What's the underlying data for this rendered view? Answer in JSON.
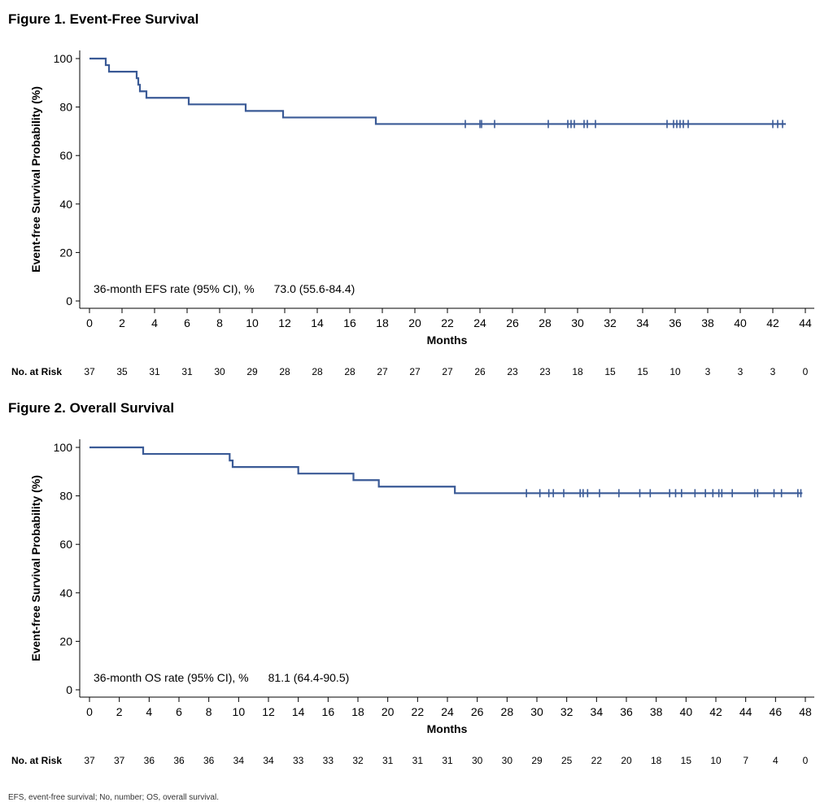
{
  "footnote": "EFS, event-free survival; No, number; OS, overall survival.",
  "chart_data": [
    {
      "type": "line",
      "title": "Figure 1. Event-Free Survival",
      "xlabel": "Months",
      "ylabel": "Event-free Survival Probability (%)",
      "xlim": [
        0,
        44
      ],
      "ylim": [
        0,
        100
      ],
      "xticks": [
        0,
        2,
        4,
        6,
        8,
        10,
        12,
        14,
        16,
        18,
        20,
        22,
        24,
        26,
        28,
        30,
        32,
        34,
        36,
        38,
        40,
        42,
        44
      ],
      "yticks": [
        0,
        20,
        40,
        60,
        80,
        100
      ],
      "series": [
        {
          "color": "#3a5a96",
          "step_x": [
            0,
            1,
            1.2,
            2.9,
            3.0,
            3.1,
            3.5,
            6.1,
            9.6,
            11.9,
            17.6,
            42.8
          ],
          "step_y": [
            100,
            97.3,
            94.6,
            91.9,
            89.2,
            86.5,
            83.8,
            81.1,
            78.4,
            75.7,
            73.0,
            73.0
          ],
          "censored_x": [
            23.1,
            24.0,
            24.1,
            24.9,
            28.2,
            29.4,
            29.6,
            29.8,
            30.4,
            30.6,
            31.1,
            35.5,
            35.9,
            36.1,
            36.3,
            36.5,
            36.8,
            42.0,
            42.3,
            42.6
          ]
        }
      ],
      "annotation": {
        "label": "36-month EFS rate (95% CI), %",
        "value": "73.0 (55.6-84.4)"
      },
      "risk_table": {
        "label": "No. at Risk",
        "counts": [
          "37",
          "35",
          "31",
          "31",
          "30",
          "29",
          "28",
          "28",
          "28",
          "27",
          "27",
          "27",
          "26",
          "23",
          "23",
          "18",
          "15",
          "15",
          "10",
          "3",
          "3",
          "3",
          "0"
        ]
      }
    },
    {
      "type": "line",
      "title": "Figure 2. Overall Survival",
      "xlabel": "Months",
      "ylabel": "Event-free Survival Probability (%)",
      "xlim": [
        0,
        48
      ],
      "ylim": [
        0,
        100
      ],
      "xticks": [
        0,
        2,
        4,
        6,
        8,
        10,
        12,
        14,
        16,
        18,
        20,
        22,
        24,
        26,
        28,
        30,
        32,
        34,
        36,
        38,
        40,
        42,
        44,
        46,
        48
      ],
      "yticks": [
        0,
        20,
        40,
        60,
        80,
        100
      ],
      "series": [
        {
          "color": "#3a5a96",
          "step_x": [
            0,
            3.6,
            9.4,
            9.6,
            14.0,
            17.7,
            19.4,
            24.5,
            47.8
          ],
          "step_y": [
            100,
            97.3,
            94.6,
            91.9,
            89.2,
            86.5,
            83.8,
            81.1,
            81.1
          ],
          "censored_x": [
            29.3,
            30.2,
            30.8,
            31.1,
            31.8,
            32.9,
            33.1,
            33.4,
            34.2,
            35.5,
            36.9,
            37.6,
            38.9,
            39.3,
            39.7,
            40.6,
            41.3,
            41.8,
            42.2,
            42.4,
            43.1,
            44.6,
            44.8,
            45.9,
            46.4,
            47.5,
            47.7
          ]
        }
      ],
      "annotation": {
        "label": "36-month OS rate (95% CI), %",
        "value": "81.1 (64.4-90.5)"
      },
      "risk_table": {
        "label": "No. at Risk",
        "counts": [
          "37",
          "37",
          "36",
          "36",
          "36",
          "34",
          "34",
          "33",
          "33",
          "32",
          "31",
          "31",
          "31",
          "30",
          "30",
          "29",
          "25",
          "22",
          "20",
          "18",
          "15",
          "10",
          "7",
          "4",
          "0"
        ]
      }
    }
  ]
}
